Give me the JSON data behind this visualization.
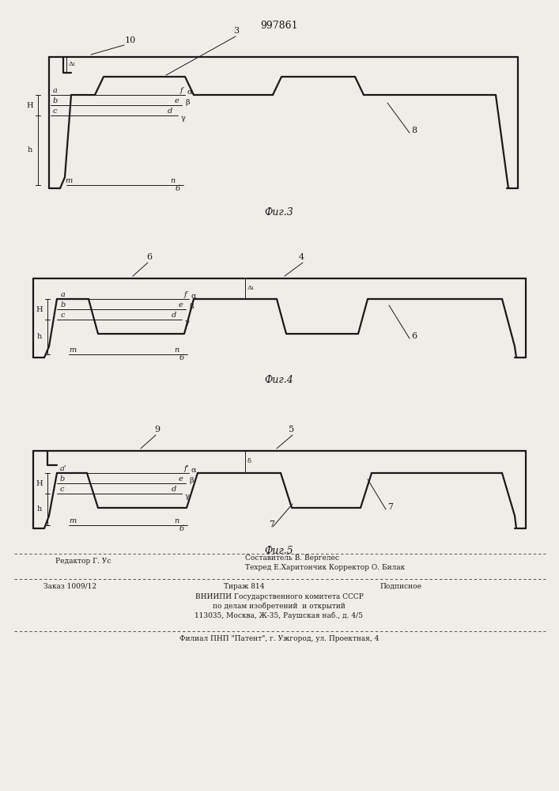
{
  "title": "997861",
  "background_color": "#f0ede8",
  "line_color": "#1a1a1a",
  "lw": 1.6,
  "tlw": 0.7,
  "ann_fs": 7,
  "fig3_label": "Фиг.3",
  "fig4_label": "Фиг.4",
  "fig5_label": "Фиг.5"
}
